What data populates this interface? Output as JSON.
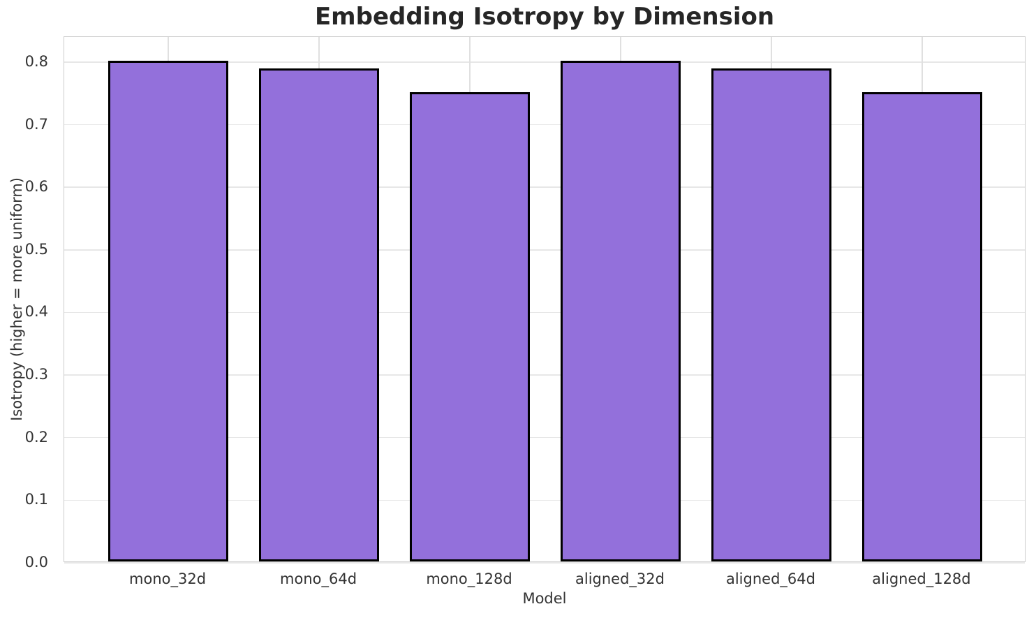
{
  "chart_data": {
    "type": "bar",
    "title": "Embedding Isotropy by Dimension",
    "xlabel": "Model",
    "ylabel": "Isotropy (higher = more uniform)",
    "categories": [
      "mono_32d",
      "mono_64d",
      "mono_128d",
      "aligned_32d",
      "aligned_64d",
      "aligned_128d"
    ],
    "values": [
      0.8,
      0.788,
      0.75,
      0.8,
      0.788,
      0.75
    ],
    "ylim": [
      0,
      0.84
    ],
    "yticks": [
      0.0,
      0.1,
      0.2,
      0.3,
      0.4,
      0.5,
      0.6,
      0.7,
      0.8
    ],
    "ytick_decimals": 1,
    "grid": true,
    "legend": null,
    "bar_color": "#9370DB",
    "bar_edge_color": "#000000",
    "gridline_color": "#e7e7e7",
    "spine_color": "#cccccc",
    "tick_label_color": "#333333",
    "title_color": "#262626",
    "background_color": "#ffffff"
  }
}
